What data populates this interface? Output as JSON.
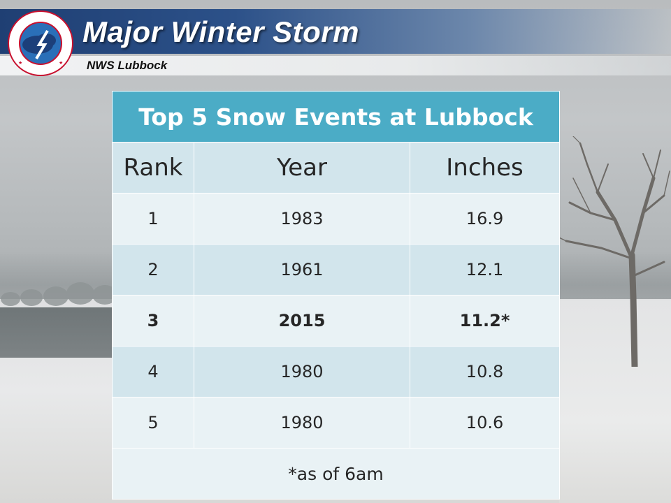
{
  "header": {
    "title": "Major Winter Storm",
    "office": "NWS Lubbock",
    "logo_text": "NATIONAL WEATHER SERVICE"
  },
  "table": {
    "title": "Top 5 Snow Events at Lubbock",
    "columns": [
      "Rank",
      "Year",
      "Inches"
    ],
    "rows": [
      {
        "rank": "1",
        "year": "1983",
        "inches": "16.9",
        "bold": false
      },
      {
        "rank": "2",
        "year": "1961",
        "inches": "12.1",
        "bold": false
      },
      {
        "rank": "3",
        "year": "2015",
        "inches": "11.2*",
        "bold": true
      },
      {
        "rank": "4",
        "year": "1980",
        "inches": "10.8",
        "bold": false
      },
      {
        "rank": "5",
        "year": "1980",
        "inches": "10.6",
        "bold": false
      }
    ],
    "footnote": "*as of 6am"
  },
  "colors": {
    "table_title_bg": "#4bacc6",
    "row_dark": "#d2e5ec",
    "row_light": "#e9f2f5",
    "header_band": "#1f3f73"
  }
}
